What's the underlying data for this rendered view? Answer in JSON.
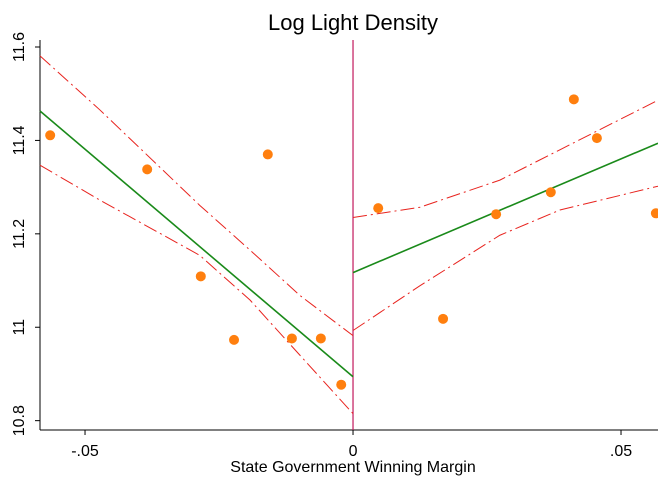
{
  "chart_data": {
    "type": "scatter",
    "title": "Log Light Density",
    "x_label": "State Government Winning Margin",
    "xlim": [
      -0.0584,
      0.0569
    ],
    "ylim": [
      10.78,
      11.615
    ],
    "xticks": [
      {
        "value": -0.05,
        "label": "-.05"
      },
      0,
      {
        "value": 0.05,
        "label": ".05"
      }
    ],
    "yticks": [
      10.8,
      11,
      11.2,
      11.4,
      11.6
    ],
    "vline": {
      "x": 0,
      "color": "#c2185b"
    },
    "series": [
      {
        "color": "#ff7f0e",
        "x": [
          -0.0565,
          -0.0384,
          -0.0284,
          -0.0222,
          -0.0159,
          -0.0114,
          -0.006,
          -0.0022,
          0.0047,
          0.0168,
          0.0267,
          0.0369,
          0.0412,
          0.0455,
          0.0565
        ],
        "values": [
          11.411,
          11.338,
          11.109,
          10.973,
          11.37,
          10.976,
          10.976,
          10.877,
          11.255,
          11.018,
          11.242,
          11.289,
          11.488,
          11.405,
          11.244
        ]
      }
    ],
    "lines": [
      {
        "color": "#1a8a1a",
        "dashed": false,
        "x": [
          -0.0584,
          0
        ],
        "values": [
          11.463,
          10.894
        ]
      },
      {
        "color": "#1a8a1a",
        "dashed": false,
        "x": [
          0,
          0.0569
        ],
        "values": [
          11.117,
          11.394
        ]
      },
      {
        "color": "#e8231e",
        "dashed": true,
        "x": [
          -0.0584,
          -0.0472,
          -0.0286,
          -0.0192,
          -0.0099,
          0
        ],
        "values": [
          11.581,
          11.465,
          11.261,
          11.165,
          11.068,
          10.982
        ]
      },
      {
        "color": "#e8231e",
        "dashed": true,
        "x": [
          -0.0584,
          -0.0472,
          -0.0286,
          -0.0192,
          -0.0099,
          0
        ],
        "values": [
          11.347,
          11.272,
          11.154,
          11.058,
          10.94,
          10.815
        ]
      },
      {
        "color": "#e8231e",
        "dashed": true,
        "x": [
          0,
          0.0125,
          0.0274,
          0.0386,
          0.0569
        ],
        "values": [
          11.235,
          11.257,
          11.315,
          11.38,
          11.486
        ]
      },
      {
        "color": "#e8231e",
        "dashed": true,
        "x": [
          0,
          0.0125,
          0.0274,
          0.0386,
          0.0569
        ],
        "values": [
          10.993,
          11.089,
          11.197,
          11.251,
          11.302
        ]
      }
    ]
  }
}
